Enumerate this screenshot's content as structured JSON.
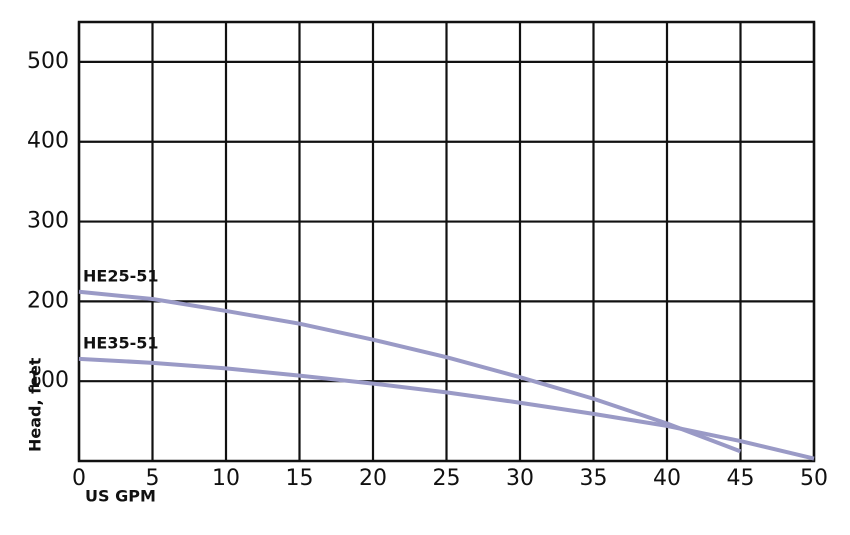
{
  "chart_data": {
    "type": "line",
    "x_label": "US GPM",
    "y_label": "Head, feet",
    "x": [
      0,
      5,
      10,
      15,
      20,
      25,
      30,
      35,
      40,
      45,
      50
    ],
    "series": [
      {
        "name": "HE25-51",
        "color": "#9a9ac6",
        "values": [
          212,
          203,
          188,
          172,
          152,
          130,
          105,
          78,
          47,
          12,
          null
        ]
      },
      {
        "name": "HE35-51",
        "color": "#9a9ac6",
        "values": [
          128,
          123,
          116,
          107,
          97,
          86,
          73,
          59,
          44,
          25,
          3
        ]
      }
    ],
    "xlim": [
      0,
      50
    ],
    "xticks": [
      0,
      5,
      10,
      15,
      20,
      25,
      30,
      35,
      40,
      45,
      50
    ],
    "ylim": [
      0,
      550
    ],
    "yticks": [
      100,
      200,
      300,
      400,
      500
    ],
    "grid": true
  }
}
